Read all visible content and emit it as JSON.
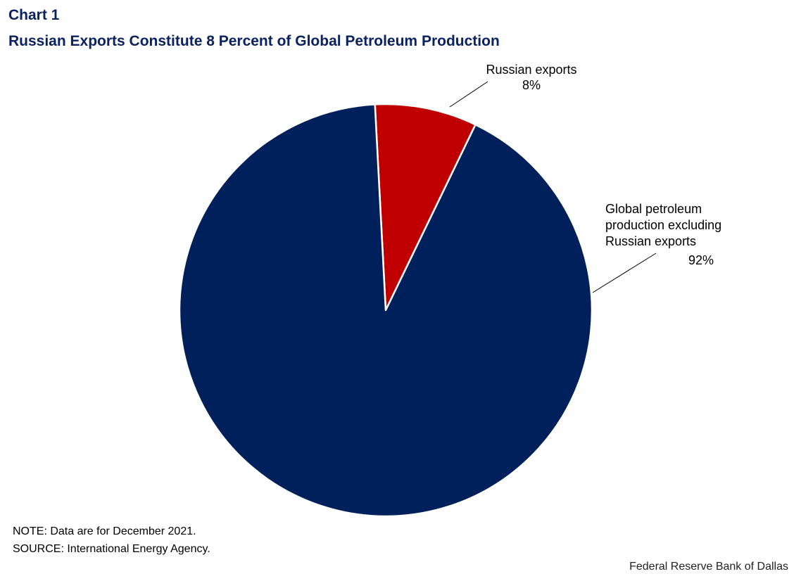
{
  "header": {
    "chart_number": "Chart 1",
    "title": "Russian Exports Constitute 8 Percent of Global Petroleum Production"
  },
  "chart_data": {
    "type": "pie",
    "title": "Russian Exports Constitute 8 Percent of Global Petroleum Production",
    "slices": [
      {
        "label": "Russian exports",
        "value": 8,
        "display": "8%",
        "color": "#c00000"
      },
      {
        "label": "Global petroleum production excluding Russian exports",
        "value": 92,
        "display": "92%",
        "color": "#00205b"
      }
    ]
  },
  "labels": {
    "red_line1": "Russian exports",
    "red_pct": "8%",
    "blue_line1": "Global petroleum",
    "blue_line2": "production excluding",
    "blue_line3": "Russian exports",
    "blue_pct": "92%"
  },
  "footer": {
    "note": "NOTE: Data are for December 2021.",
    "source": "SOURCE: International Energy Agency.",
    "credit": "Federal Reserve Bank of Dallas"
  }
}
